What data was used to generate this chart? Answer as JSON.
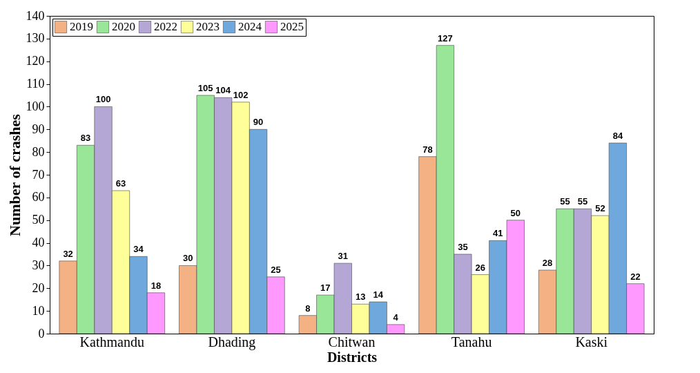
{
  "chart_data": {
    "type": "bar",
    "xlabel": "Districts",
    "ylabel": "Number of crashes",
    "categories": [
      "Kathmandu",
      "Dhading",
      "Chitwan",
      "Tanahu",
      "Kaski"
    ],
    "series": [
      {
        "name": "2019",
        "color": "#f4b183",
        "values": [
          32,
          30,
          8,
          78,
          28
        ]
      },
      {
        "name": "2020",
        "color": "#99e699",
        "values": [
          83,
          105,
          17,
          127,
          55
        ]
      },
      {
        "name": "2022",
        "color": "#b4a7d6",
        "values": [
          100,
          104,
          31,
          35,
          55
        ]
      },
      {
        "name": "2023",
        "color": "#ffff99",
        "values": [
          63,
          102,
          13,
          26,
          52
        ]
      },
      {
        "name": "2024",
        "color": "#6fa8dc",
        "values": [
          34,
          90,
          14,
          41,
          84
        ]
      },
      {
        "name": "2025",
        "color": "#ff99ff",
        "values": [
          18,
          25,
          4,
          50,
          22
        ]
      }
    ],
    "ylim": [
      0,
      140
    ],
    "yticks": [
      0,
      10,
      20,
      30,
      40,
      50,
      60,
      70,
      80,
      90,
      100,
      110,
      120,
      130,
      140
    ],
    "data_labels": true,
    "legend": "top left",
    "grid": false
  }
}
